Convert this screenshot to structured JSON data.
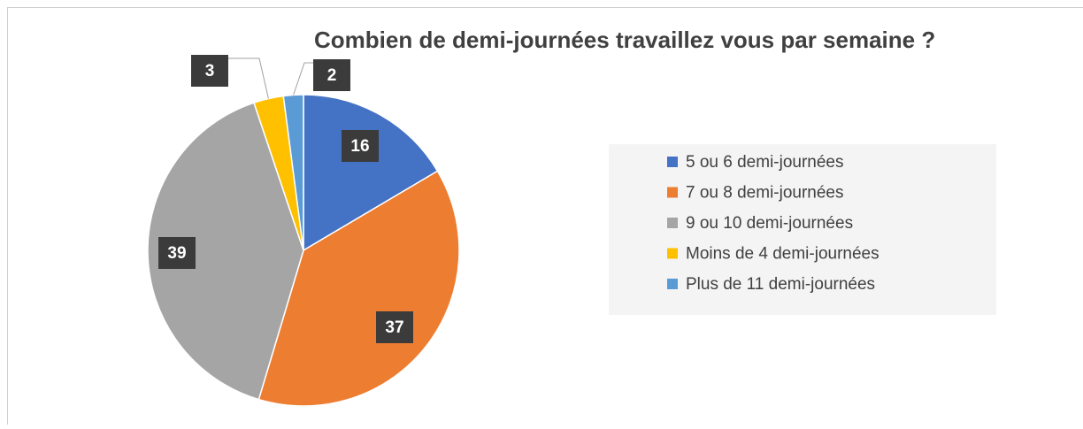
{
  "chart_data": {
    "type": "pie",
    "title": "Combien de demi-journées travaillez vous par semaine ?",
    "categories": [
      "5 ou 6 demi-journées",
      "7 ou 8 demi-journées",
      "9 ou 10 demi-journées",
      "Moins de 4 demi-journées",
      "Plus de 11 demi-journées"
    ],
    "values": [
      16,
      37,
      39,
      3,
      2
    ],
    "colors": [
      "#4472c4",
      "#ed7d31",
      "#a5a5a5",
      "#ffc000",
      "#5b9bd5"
    ],
    "legend": "right"
  }
}
